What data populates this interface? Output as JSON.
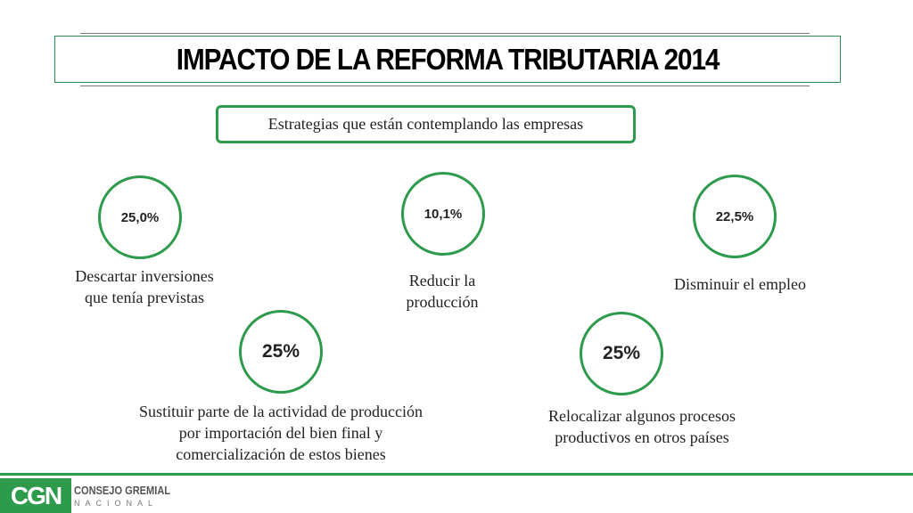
{
  "title": "IMPACTO DE LA REFORMA TRIBUTARIA 2014",
  "subtitle": "Estrategias que están contemplando las empresas",
  "items": [
    {
      "value": "25,0%",
      "label_lines": [
        "Descartar inversiones",
        "que tenía previstas"
      ]
    },
    {
      "value": "10,1%",
      "label_lines": [
        "Reducir la",
        "producción"
      ]
    },
    {
      "value": "22,5%",
      "label_lines": [
        "Disminuir el empleo"
      ]
    },
    {
      "value": "25%",
      "label_lines": [
        "Sustituir parte de la actividad de producción",
        "por importación del bien  final y",
        "comercialización de estos bienes"
      ]
    },
    {
      "value": "25%",
      "label_lines": [
        "Relocalizar algunos procesos",
        "productivos en otros países"
      ]
    }
  ],
  "logo": {
    "mark": "CGN",
    "line1": "CONSEJO GREMIAL",
    "line2": "NACIONAL"
  },
  "colors": {
    "accent": "#2e9a4c"
  }
}
